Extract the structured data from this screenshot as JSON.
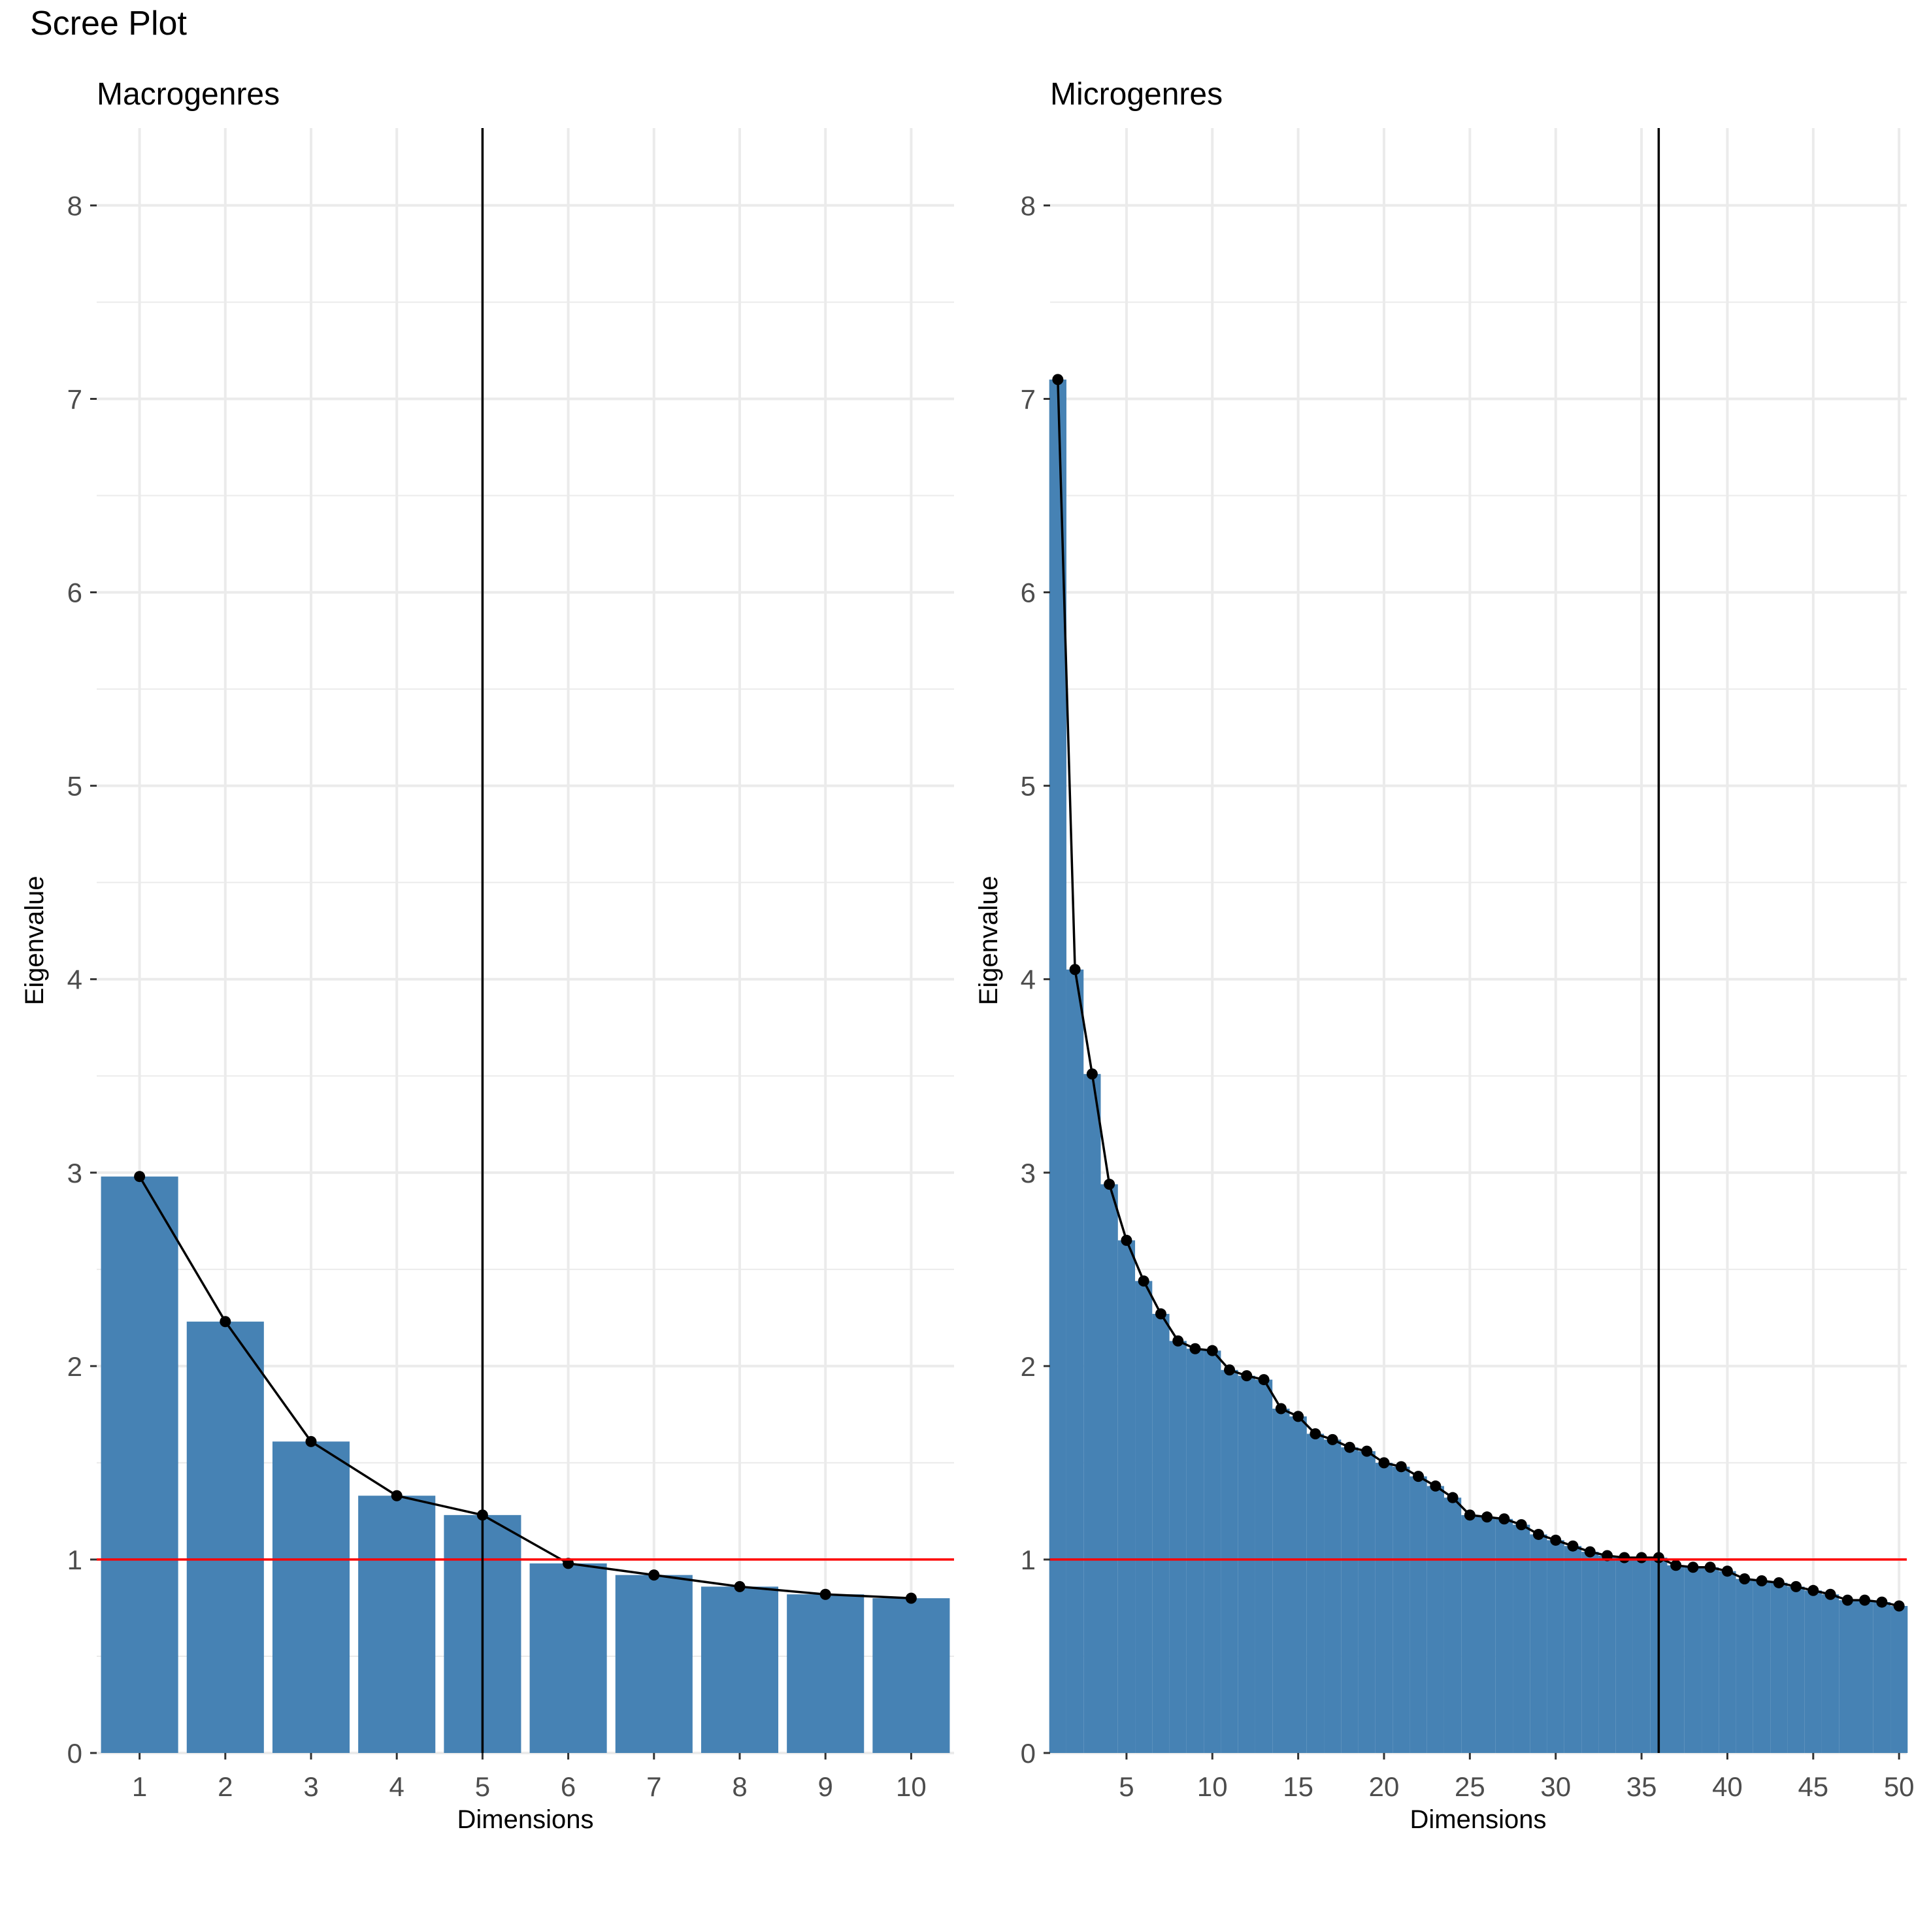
{
  "title": "Scree Plot",
  "colors": {
    "bar": "#4682B4",
    "grid": "#EBEBEB",
    "line": "#000000",
    "reference_line": "#FF0000",
    "axis_text": "#4D4D4D"
  },
  "chart_data": [
    {
      "type": "bar",
      "title": "Macrogenres",
      "xlabel": "Dimensions",
      "ylabel": "Eigenvalue",
      "x": [
        1,
        2,
        3,
        4,
        5,
        6,
        7,
        8,
        9,
        10
      ],
      "values": [
        2.98,
        2.23,
        1.61,
        1.33,
        1.23,
        0.98,
        0.92,
        0.86,
        0.82,
        0.8
      ],
      "overlay": "line-with-points",
      "xticks": [
        "1",
        "2",
        "3",
        "4",
        "5",
        "6",
        "7",
        "8",
        "9",
        "10"
      ],
      "yticks": [
        "0",
        "1",
        "2",
        "3",
        "4",
        "5",
        "6",
        "7",
        "8"
      ],
      "ylim": [
        0,
        8.4
      ],
      "hline": 1,
      "vline": 5,
      "grid": true
    },
    {
      "type": "bar",
      "title": "Microgenres",
      "xlabel": "Dimensions",
      "ylabel": "Eigenvalue",
      "x": [
        1,
        2,
        3,
        4,
        5,
        6,
        7,
        8,
        9,
        10,
        11,
        12,
        13,
        14,
        15,
        16,
        17,
        18,
        19,
        20,
        21,
        22,
        23,
        24,
        25,
        26,
        27,
        28,
        29,
        30,
        31,
        32,
        33,
        34,
        35,
        36,
        37,
        38,
        39,
        40,
        41,
        42,
        43,
        44,
        45,
        46,
        47,
        48,
        49,
        50
      ],
      "values": [
        7.1,
        4.05,
        3.51,
        2.94,
        2.65,
        2.44,
        2.27,
        2.13,
        2.09,
        2.08,
        1.98,
        1.95,
        1.93,
        1.78,
        1.74,
        1.65,
        1.62,
        1.58,
        1.56,
        1.5,
        1.48,
        1.43,
        1.38,
        1.32,
        1.23,
        1.22,
        1.21,
        1.18,
        1.13,
        1.1,
        1.07,
        1.04,
        1.02,
        1.01,
        1.01,
        1.01,
        0.97,
        0.96,
        0.96,
        0.94,
        0.9,
        0.89,
        0.88,
        0.86,
        0.84,
        0.82,
        0.79,
        0.79,
        0.78,
        0.76
      ],
      "overlay": "line-with-points",
      "xticks": [
        "5",
        "10",
        "15",
        "20",
        "25",
        "30",
        "35",
        "40",
        "45",
        "50"
      ],
      "yticks": [
        "0",
        "1",
        "2",
        "3",
        "4",
        "5",
        "6",
        "7",
        "8"
      ],
      "ylim": [
        0,
        8.4
      ],
      "hline": 1,
      "vline": 36,
      "grid": true
    }
  ]
}
